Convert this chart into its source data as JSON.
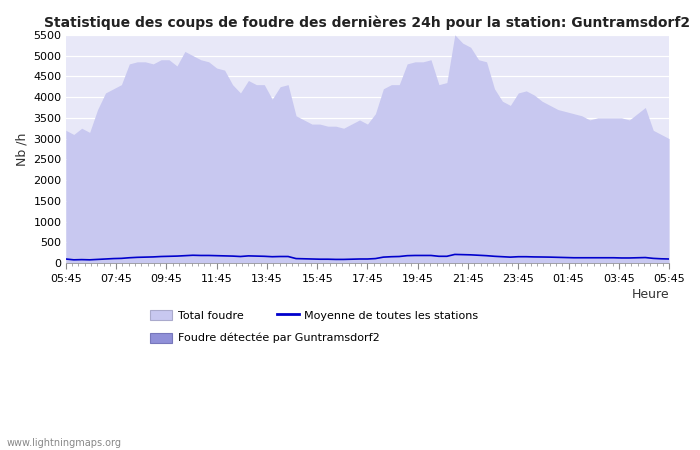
{
  "title": "Statistique des coups de foudre des dernières 24h pour la station: Guntramsdorf2",
  "ylabel": "Nb /h",
  "xlabel": "Heure",
  "ylim": [
    0,
    5500
  ],
  "yticks": [
    0,
    500,
    1000,
    1500,
    2000,
    2500,
    3000,
    3500,
    4000,
    4500,
    5000,
    5500
  ],
  "xtick_labels": [
    "05:45",
    "07:45",
    "09:45",
    "11:45",
    "13:45",
    "15:45",
    "17:45",
    "19:45",
    "21:45",
    "23:45",
    "01:45",
    "03:45",
    "05:45"
  ],
  "bg_color": "#e8e8f8",
  "fig_color": "#ffffff",
  "fill_total_color": "#c8c8f0",
  "fill_detected_color": "#9090d8",
  "line_color": "#0000cc",
  "watermark": "www.lightningmaps.org",
  "total_foudre": [
    3200,
    3100,
    3250,
    3150,
    3700,
    4100,
    4200,
    4300,
    4800,
    4850,
    4850,
    4800,
    4900,
    4900,
    4750,
    5100,
    5000,
    4900,
    4850,
    4700,
    4650,
    4300,
    4100,
    4400,
    4300,
    4300,
    3950,
    4250,
    4300,
    3550,
    3450,
    3350,
    3350,
    3300,
    3300,
    3250,
    3350,
    3450,
    3350,
    3600,
    4200,
    4300,
    4300,
    4800,
    4850,
    4850,
    4900,
    4300,
    4350,
    5500,
    5300,
    5200,
    4900,
    4850,
    4200,
    3900,
    3800,
    4100,
    4150,
    4050,
    3900,
    3800,
    3700,
    3650,
    3600,
    3550,
    3450,
    3500,
    3500,
    3500,
    3500,
    3450,
    3600,
    3750,
    3200,
    3100,
    3000
  ],
  "moyenne": [
    100,
    80,
    85,
    80,
    90,
    100,
    110,
    115,
    130,
    140,
    145,
    150,
    160,
    165,
    170,
    180,
    190,
    185,
    185,
    180,
    175,
    170,
    160,
    175,
    170,
    165,
    155,
    160,
    160,
    110,
    105,
    100,
    95,
    95,
    90,
    90,
    95,
    100,
    100,
    110,
    145,
    155,
    160,
    180,
    185,
    185,
    185,
    165,
    165,
    210,
    205,
    200,
    190,
    180,
    165,
    155,
    145,
    155,
    155,
    150,
    148,
    145,
    140,
    135,
    130,
    130,
    130,
    130,
    130,
    130,
    125,
    125,
    130,
    135,
    115,
    105,
    100
  ]
}
